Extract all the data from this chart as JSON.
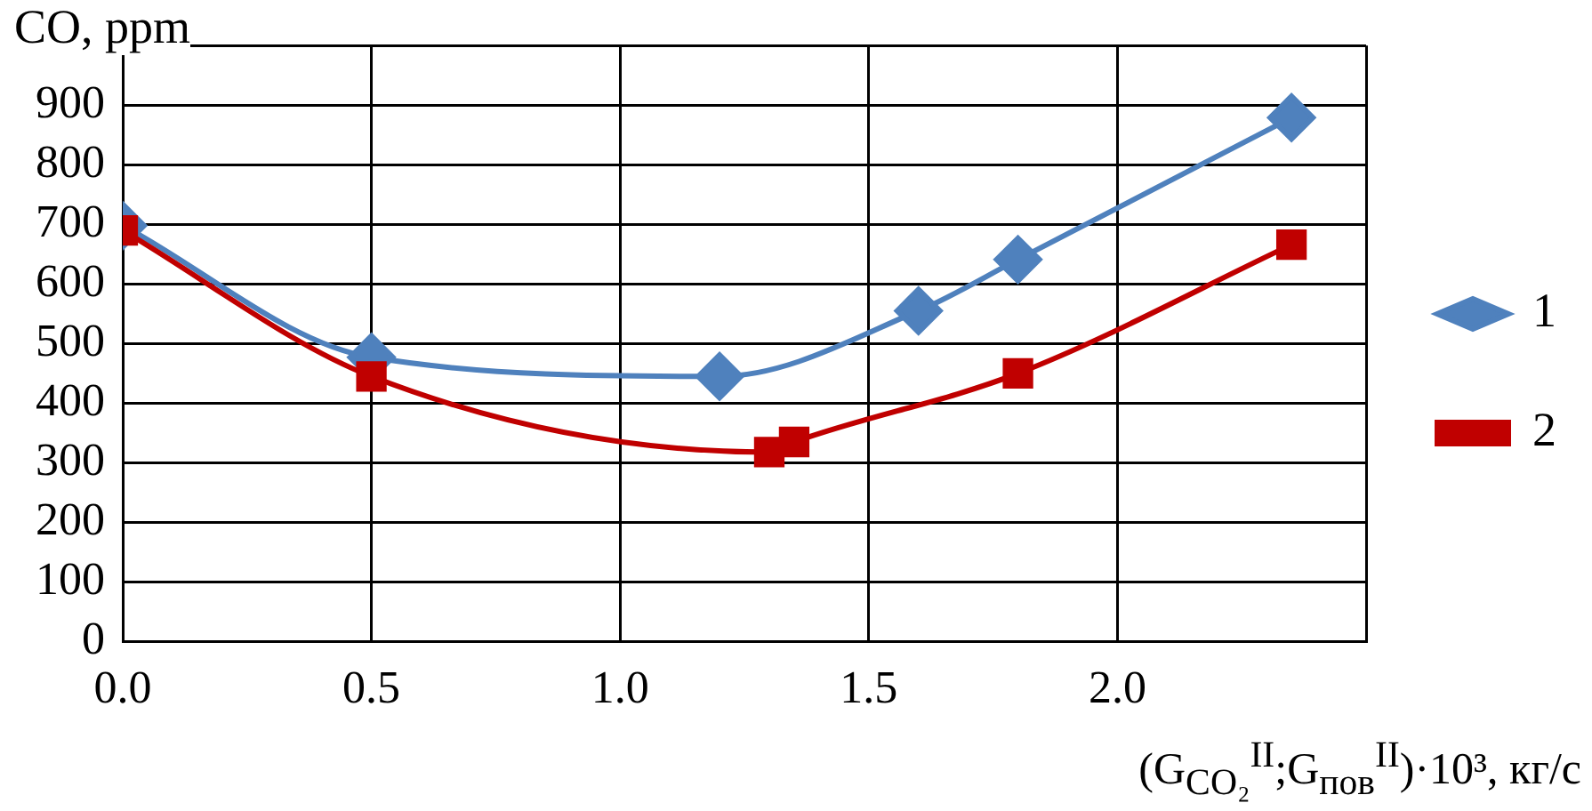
{
  "chart_data": {
    "type": "line",
    "ylabel": "CO, ppm",
    "xlabel": "(G$_{CO₂}$$^{II}$;G$_{пов}$$^{II}$)·10³, кг/с",
    "x": [
      0.0,
      0.5,
      1.2,
      1.6,
      1.8,
      2.35
    ],
    "series": [
      {
        "name": "1",
        "color": "#4f81bd",
        "marker": "diamond",
        "values": [
          698,
          477,
          445,
          555,
          641,
          879
        ]
      },
      {
        "name": "2",
        "color": "#c00000",
        "marker": "square",
        "x": [
          0.0,
          0.5,
          1.3,
          1.35,
          1.8,
          2.35
        ],
        "values": [
          690,
          445,
          318,
          335,
          450,
          666
        ]
      }
    ],
    "xlim": [
      0,
      2.5
    ],
    "xticks": [
      {
        "value": 0,
        "label": "0.0"
      },
      {
        "value": 0.5,
        "label": "0.5"
      },
      {
        "value": 1,
        "label": "1.0"
      },
      {
        "value": 1.5,
        "label": "1.5"
      },
      {
        "value": 2,
        "label": "2.0"
      },
      {
        "value": 2.5,
        "label": null
      }
    ],
    "ylim": [
      0,
      1000
    ],
    "yticks": [
      0,
      100,
      200,
      300,
      400,
      500,
      600,
      700,
      800,
      900,
      {
        "value": 1000,
        "label": null
      }
    ],
    "grid": true,
    "legend": "right",
    "line_style": "solid"
  }
}
